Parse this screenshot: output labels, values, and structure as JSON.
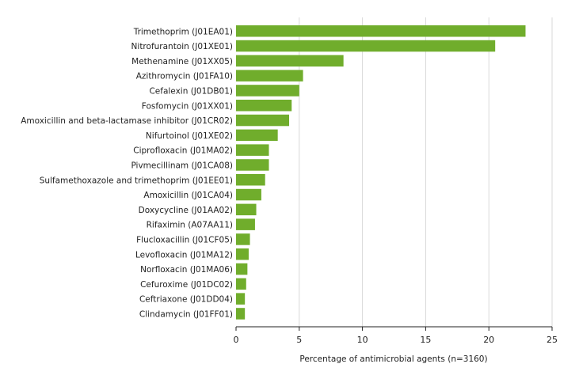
{
  "chart_data": {
    "type": "bar",
    "orientation": "horizontal",
    "categories": [
      "Trimethoprim (J01EA01)",
      "Nitrofurantoin (J01XE01)",
      "Methenamine (J01XX05)",
      "Azithromycin (J01FA10)",
      "Cefalexin (J01DB01)",
      "Fosfomycin (J01XX01)",
      "Amoxicillin and beta-lactamase inhibitor (J01CR02)",
      "Nifurtoinol (J01XE02)",
      "Ciprofloxacin (J01MA02)",
      "Pivmecillinam (J01CA08)",
      "Sulfamethoxazole and trimethoprim (J01EE01)",
      "Amoxicillin (J01CA04)",
      "Doxycycline (J01AA02)",
      "Rifaximin (A07AA11)",
      "Flucloxacillin (J01CF05)",
      "Levofloxacin (J01MA12)",
      "Norfloxacin (J01MA06)",
      "Cefuroxime (J01DC02)",
      "Ceftriaxone (J01DD04)",
      "Clindamycin (J01FF01)"
    ],
    "values": [
      22.9,
      20.5,
      8.5,
      5.3,
      5.0,
      4.4,
      4.2,
      3.3,
      2.6,
      2.6,
      2.3,
      2.0,
      1.6,
      1.5,
      1.1,
      1.0,
      0.9,
      0.8,
      0.7,
      0.7
    ],
    "title": "",
    "xlabel": "Percentage of antimicrobial agents (n=3160)",
    "ylabel": "",
    "xlim": [
      0,
      25
    ],
    "xticks": [
      "0",
      "5",
      "10",
      "15",
      "20",
      "25"
    ],
    "grid": "vertical",
    "bar_color": "#70ad2c"
  }
}
